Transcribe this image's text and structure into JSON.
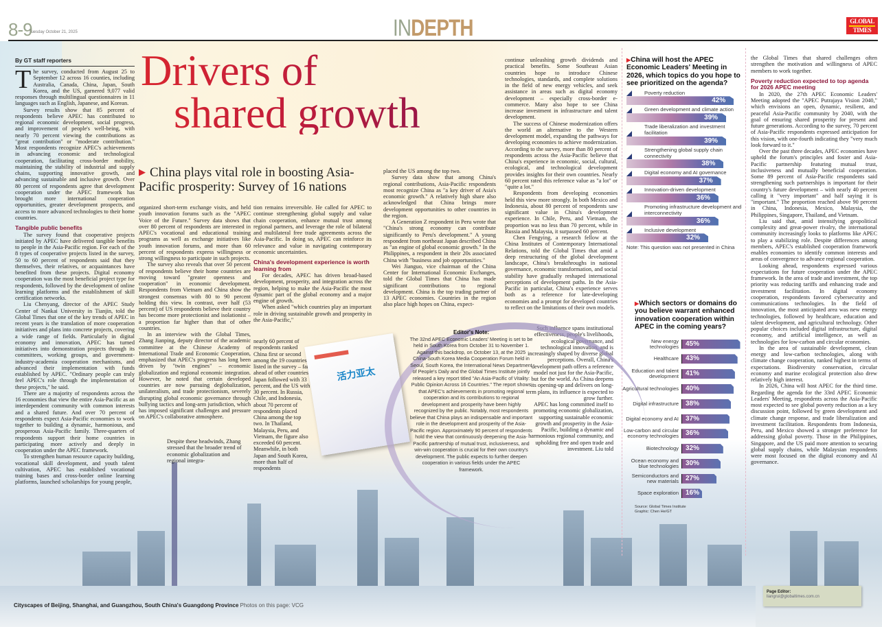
{
  "header": {
    "page": "8-9",
    "date": "Tuesday October 21, 2025",
    "section_in": "IN",
    "section_depth": "DEPTH",
    "logo": "GLOBAL TIMES"
  },
  "colors": {
    "headline": "#c41e3a",
    "subheading": "#8a1538",
    "section_depth": "#c29a6a",
    "section_in": "#9aa58e",
    "logo_bg": "#e3262b",
    "bar_start": "#8f5a93",
    "bar_end": "#4f72b1"
  },
  "headline": {
    "line1": "Drivers of",
    "line2": "shared growth",
    "subhead": "China plays vital role in boosting Asia-Pacific prosperity: Survey of 16 nations"
  },
  "byline": "By GT staff reporters",
  "columns": {
    "col1": [
      {
        "t": "p",
        "drop": "T",
        "text": "he survey, conducted from August 25 to September 12 across 16 counties, including Australia, Canada, China, Japan, South Korea, and the US, garnered 9,077 valid responses through multilingual questionnaires in 11 languages such as English, Japanese, and Korean."
      },
      {
        "t": "p",
        "text": "Survey results show that 85 percent of respondents believe APEC has contributed to regional economic development, social progress, and improvement of people's well-being, with nearly 70 percent viewing the contributions as \"great contribution\" or \"moderate contribution.\" Most respondents recognize APEC's achievements in advancing economic and technological cooperation, facilitating cross-border mobility, maintaining the stability of industrial and supply chains, supporting innovative growth, and advancing sustainable and inclusive growth. Over 80 percent of respondents agree that development cooperation under the APEC framework has brought more international cooperation opportunities, greater development prospects, and access to more advanced technologies to their home countries."
      },
      {
        "t": "h",
        "text": "Tangible public benefits"
      },
      {
        "t": "p",
        "text": "The survey found that cooperative projects initiated by APEC have delivered tangible benefits to people in the Asia-Pacific region. For each of the 8 types of cooperative projects listed in the survey, 50 to 60 percent of respondents said that they themselves, their relatives, or acquaintances have benefited from these projects. Digital economy cooperation was the most beneficial project type for respondents, followed by the development of online learning platforms and the establishment of skill certification networks."
      },
      {
        "t": "p",
        "text": "Liu Chenyang, director of the APEC Study Center of Nankai University in Tianjin, told the Global Times that one of the key trends of APEC in recent years is the translation of more cooperation initiatives and plans into concrete projects, covering a wide range of fields. Particularly in digital economy and innovation, APEC has turned initiatives into demonstration projects through its committees, working groups, and government-industry-academia cooperation mechanisms, and advanced their implementation with funds established by APEC. \"Ordinary people can truly feel APEC's role through the implementation of these projects,\" he said."
      },
      {
        "t": "p",
        "text": "There are a majority of respondents across the 16 economies that view the entire Asia-Pacific as an interdependent community with common interests and a shared future. And over 70 percent of respondents expect Asia-Pacific economies to work together to building a dynamic, harmonious, and prosperous Asia-Pacific family. Three-quarters of respondents support their home countries in participating more actively and deeply in cooperation under the APEC framework."
      },
      {
        "t": "p",
        "text": "To strengthen human resource capacity building, vocational skill development, and youth talent cultivation, APEC has established vocational training bases and cross-border online learning platforms, launched scholarships for young people,"
      }
    ],
    "col2": [
      {
        "t": "p",
        "noind": true,
        "text": "organized short-term exchange visits, and held youth innovation forums such as the \"APEC Voice of the Future.\" Survey data shows that over 80 percent of respondents are interested in APEC's vocational and educational training programs as well as exchange initiatives like youth innovation forums, and more than 60 percent of respondents express willingness or strong willingness to participate in such projects."
      },
      {
        "t": "p",
        "text": "The survey also reveals that over 50 percent of respondents believe their home countries are moving toward \"greater openness and cooperation\" in economic development. Respondents from Vietnam and China show the strongest consensus with 80 to 90 percent holding this view. In contrast, over half (53 percent) of US respondents believe their country has become more protectionist and isolationist – a proportion far higher than that of other countries."
      },
      {
        "t": "p",
        "text": "In an interview with the Global Times, Zhang Jianping, deputy director of the academic committee at the Chinese Academy of International Trade and Economic Cooperation, emphasized that APEC's progress has long been driven by \"twin engines\" – economic globalization and regional economic integration. However, he noted that certain developed countries are now pursuing deglobalization, unilateralism, and trade protectionism, severely disrupting global economic governance through bullying tactics and long-arm jurisdiction, which has imposed significant challenges and pressure on APEC's collaborative atmosphere."
      }
    ],
    "col2b": [
      {
        "t": "p",
        "text": "Despite these headwinds, Zhang stressed that the broader trend of economic globalization and regional integra-"
      }
    ],
    "col3": [
      {
        "t": "p",
        "noind": true,
        "text": "tion remains irreversible. He called for APEC to continue strengthening global supply and value chain cooperation, enhance mutual trust among regional partners, and leverage the role of bilateral and multilateral free trade agreements across the Asia-Pacific. In doing so, APEC can reinforce its relevance and value in navigating contemporary economic uncertainties."
      },
      {
        "t": "h",
        "text": "China's development experience is worth learning from"
      },
      {
        "t": "p",
        "text": "For decades, APEC has driven broad-based development, prosperity, and integration across the region, helping to make the Asia-Pacific the most dynamic part of the global economy and a major engine of growth."
      },
      {
        "t": "p",
        "text": "When asked \"which countries play an important role in driving sustainable growth and prosperity in the Asia-Pacific,\""
      }
    ],
    "col3b": [
      {
        "t": "p",
        "noind": true,
        "text": "nearly 60 percent of respondents ranked China first or second among the 19 countries listed in the survey – far ahead of other countries. Japan followed with 33 percent, and the US with 30 percent. In Russia, Chile, and Indonesia, about 70 percent of respondents placed China among the top two. In Thailand, Malaysia, Peru, and Vietnam, the figure also exceeded 60 percent. Meanwhile, in both Japan and South Korea, more than half of respondents"
      }
    ],
    "col4": [
      {
        "t": "p",
        "noind": true,
        "text": "placed the US among the top two."
      },
      {
        "t": "p",
        "text": "Survey data show that among China's regional contributions, Asia-Pacific respondents most recognize China as \"a key driver of Asia's economic growth.\" A relatively high share also acknowledged that China brings more development opportunities to other countries in the region."
      },
      {
        "t": "p",
        "text": "A Generation Z respondent in Peru wrote that \"China's strong economy can contribute significantly to Peru's development.\" A young respondent from northeast Japan described China as \"an engine of global economic growth.\" In the Philippines, a respondent in their 20s associated China with \"business and job opportunities.\""
      },
      {
        "t": "p",
        "text": "Wei Jianguo, vice chairman of the China Center for International Economic Exchanges, told the Global Times that China has made significant contributions to regional development. China is the top trading partner of 13 APEC economies. Countries in the region also place high hopes on China, expect-"
      }
    ],
    "col5": [
      {
        "t": "p",
        "noind": true,
        "text": "continue unleashing growth dividends and practical benefits. Some Southeast Asian countries hope to introduce Chinese technologies, standards, and complete solutions in the field of new energy vehicles, and seek assistance in areas such as digital economy development – especially cross-border e-commerce. Many also hope to see China increase investment in infrastructure and talent development."
      },
      {
        "t": "p",
        "text": "The success of Chinese modernization offers the world an alternative to the Western development model, expanding the pathways for developing economies to achieve modernization. According to the survey, more than 80 percent of respondents across the Asia-Pacific believe that China's experience in economic, social, cultural, ecological, and technological development provides insights for their own countries. Nearly 60 percent rated this reference value as \"a lot\" or \"quite a lot.\""
      },
      {
        "t": "p",
        "text": "Respondents from developing economies held this view more strongly. In both Mexico and Indonesia, about 80 percent of respondents saw significant value in China's development experience. In Chile, Peru, and Vietnam, the proportion was no less than 70 percent, while in Russia and Malaysia, it surpassed 60 percent."
      },
      {
        "t": "p",
        "text": "Chen Fengying, a research fellow at the China Institutes of Contemporary International Relations, told the Global Times that amid a deep restructuring of the global development landscape, China's breakthroughs in national governance, economic transformation, and social stability have gradually reshaped international perceptions of development paths. In the Asia-Pacific in particular, China's experience serves both as a reference for late-developing economies and a prompt for developed countries to reflect on the limitations of their own models."
      }
    ],
    "col5b": [
      {
        "t": "p",
        "text": "Such influence spans institutional effectiveness, people's livelihoods, ecological governance, and technological innovation, and is increasingly shaped by diverse global perceptions. Overall, China's development path offers a reference model not just for the Asia-Pacific, but for the world. As China deepens its opening-up and delivers on long-term plans, its influence is expected to grow further."
      },
      {
        "t": "p",
        "text": "APEC has long committed itself to promoting economic globalization, supporting sustainable economic growth and prosperity in the Asia-Pacific, building a dynamic and harmonious regional community, and upholding free and open trade and investment. Liu told"
      }
    ],
    "col6": [
      {
        "t": "p",
        "noind": true,
        "text": "the Global Times that shared challenges often strengthen the motivation and willingness of APEC members to work together."
      },
      {
        "t": "h",
        "text": "Poverty reduction expected to top agenda for 2026 APEC meeting"
      },
      {
        "t": "p",
        "text": "In 2020, the 27th APEC Economic Leaders' Meeting adopted the \"APEC Putrajaya Vision 2040,\" which envisions an open, dynamic, resilient, and peaceful Asia-Pacific community by 2040, with the goal of ensuring shared prosperity for present and future generations. According to the survey, 70 percent of Asia-Pacific respondents expressed anticipation for this vision, with one-fourth indicating they \"very much look forward to it.\""
      },
      {
        "t": "p",
        "text": "Over the past three decades, APEC economies have upheld the forum's principles and foster and Asia-Pacific partnership featuring mutual trust, inclusiveness and mutually beneficial cooperation. Some 89 percent of Asia-Pacific respondents said strengthening such partnerships is important for their country's future development – with nearly 40 percent calling it \"very important\" and half saying it is \"important.\" The proportion reached above 90 percent in China, Indonesia, Mexico, Malaysia, the Philippines, Singapore, Thailand, and Vietnam."
      },
      {
        "t": "p",
        "text": "Liu said that, amid intensifying geopolitical complexity and great-power rivalry, the international community increasingly looks to platforms like APEC to play a stabilizing role. Despite differences among members, APEC's established cooperation framework enables economies to identify common interests and areas of convergence to advance regional cooperation."
      },
      {
        "t": "p",
        "text": "Looking ahead, respondents expressed various expectations for future cooperation under the APEC framework. In the area of trade and investment, the top priority was reducing tariffs and enhancing trade and investment facilitation. In digital economy cooperation, respondents favored cybersecurity and communications technologies. In the field of innovation, the most anticipated area was new energy technologies, followed by healthcare, education and talent development, and agricultural technology. Other popular choices included digital infrastructure, digital economy, and artificial intelligence, as well as technologies for low-carbon and circular economies."
      },
      {
        "t": "p",
        "text": "In the area of sustainable development, clean energy and low-carbon technologies, along with climate change cooperation, ranked highest in terms of expectations. Biodiversity conservation, circular economy and marine ecological protection also drew relatively high interest."
      },
      {
        "t": "p",
        "text": "In 2026, China will host APEC for the third time. Regarding the agenda for the 33rd APEC Economic Leaders' Meeting, respondents across the Asia-Pacific most expected to see global poverty reduction as a key discussion point, followed by green development and climate change response, and trade liberalization and investment facilitation. Respondents from Indonesia, Peru, and Mexico showed a stronger preference for addressing global poverty. Those in the Philippines, Singapore, and the US paid more attention to securing global supply chains, while Malaysian respondents were most focused on the digital economy and AI governance."
      }
    ]
  },
  "editors_note": {
    "title": "Editor's Note:",
    "text": "The 32nd APEC Economic Leaders' Meeting is set to be held in South Korea from October 31 to November 1. Against this backdrop, on October 13, at the 2025 China-South Korea Media Cooperation Forum held in Seoul, South Korea, the International News Department of People's Daily and the Global Times Institute jointly released a key report titled \"An Asia-Pacific of Vitality: Public Opinion Across 16 Countries.\" The report shows that APEC's achievements in promoting regional cooperation and its contributions to regional development and prosperity have been highly recognized by the public. Notably, most respondents believe that China plays an indispensable and important role in the development and prosperity of the Asia-Pacific region. Approximately 90 percent of respondents hold the view that continuously deepening the Asia-Pacific partnership of mutual trust, inclusiveness, and win-win cooperation is crucial for their own country's development. The public expects to further deepen cooperation in various fields under the APEC framework.",
    "book_title": "活力亚太"
  },
  "chart_data": [
    {
      "type": "bar",
      "orientation": "horizontal",
      "title": "China will host the APEC Economic Leaders' Meeting in 2026, which topics do you hope to see prioritized on the agenda?",
      "categories": [
        "Poverty reduction",
        "Green development and climate action",
        "Trade liberalization and investment facilitation",
        "Strengthening global supply chain connectivity",
        "Digital economy and AI governance",
        "Innovation-driven development",
        "Promoting infrastructure development and interconnectivity",
        "Inclusive development"
      ],
      "values": [
        42,
        39,
        39,
        38,
        37,
        36,
        36,
        32
      ],
      "unit": "%",
      "note": "Note: This question was not presented in China"
    },
    {
      "type": "bar",
      "orientation": "horizontal",
      "title": "Which sectors or domains do you believe warrant enhanced innovation cooperation within APEC in the coming years?",
      "categories": [
        "New energy technologies",
        "Healthcare",
        "Education and talent development",
        "Agricultural technologies",
        "Digital infrastructure",
        "Digital economy and AI",
        "Low-carbon and circular economy technologies",
        "Biotechnology",
        "Ocean economy and blue technologies",
        "Semiconductors and new materials",
        "Space exploration"
      ],
      "values": [
        45,
        43,
        41,
        40,
        38,
        37,
        36,
        32,
        30,
        27,
        16
      ],
      "unit": "%",
      "source": "Source: Global Times Institute",
      "graphic": "Graphic: Chen He/GT"
    }
  ],
  "caption": {
    "bold": "Cityscapes of Beijing, Shanghai, and Guangzhou, South China's Guangdong Province",
    "credit": "Photos on this page: VCG"
  },
  "page_editor": {
    "label": "Page Editor:",
    "email": "liangrui@globaltimes.com.cn"
  }
}
